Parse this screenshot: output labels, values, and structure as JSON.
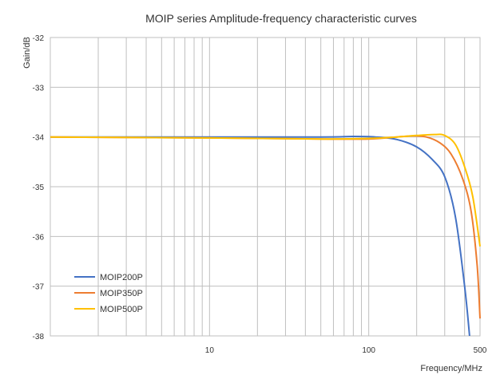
{
  "chart_data": {
    "type": "line",
    "title": "MOIP series Amplitude-frequency characteristic curves",
    "ylabel": "Gain/dB",
    "xlabel": "Frequency/MHz",
    "x_scale": "log",
    "xlim": [
      1,
      500
    ],
    "ylim": [
      -38,
      -32
    ],
    "grid": true,
    "legend_position": "bottom-left",
    "x_ticks": [
      {
        "value": 10,
        "label": "10"
      },
      {
        "value": 100,
        "label": "100"
      },
      {
        "value": 500,
        "label": "500"
      }
    ],
    "y_ticks": [
      {
        "value": -32,
        "label": "-32"
      },
      {
        "value": -33,
        "label": "-33"
      },
      {
        "value": -34,
        "label": "-34"
      },
      {
        "value": -35,
        "label": "-35"
      },
      {
        "value": -36,
        "label": "-36"
      },
      {
        "value": -37,
        "label": "-37"
      },
      {
        "value": -38,
        "label": "-38"
      }
    ],
    "series": [
      {
        "name": "MOIP200P",
        "color": "#4472c4",
        "points": [
          [
            1,
            -34.0
          ],
          [
            10,
            -34.0
          ],
          [
            50,
            -34.0
          ],
          [
            80,
            -33.99
          ],
          [
            110,
            -34.0
          ],
          [
            150,
            -34.05
          ],
          [
            200,
            -34.2
          ],
          [
            250,
            -34.45
          ],
          [
            300,
            -34.8
          ],
          [
            350,
            -35.6
          ],
          [
            400,
            -37.0
          ],
          [
            430,
            -38.0
          ]
        ]
      },
      {
        "name": "MOIP350P",
        "color": "#ed7d31",
        "points": [
          [
            1,
            -34.0
          ],
          [
            10,
            -34.02
          ],
          [
            50,
            -34.04
          ],
          [
            100,
            -34.04
          ],
          [
            150,
            -34.0
          ],
          [
            190,
            -33.98
          ],
          [
            230,
            -34.0
          ],
          [
            280,
            -34.12
          ],
          [
            330,
            -34.35
          ],
          [
            390,
            -34.85
          ],
          [
            440,
            -35.5
          ],
          [
            480,
            -36.6
          ],
          [
            500,
            -37.65
          ]
        ]
      },
      {
        "name": "MOIP500P",
        "color": "#ffc000",
        "points": [
          [
            1,
            -34.0
          ],
          [
            10,
            -34.02
          ],
          [
            50,
            -34.04
          ],
          [
            100,
            -34.03
          ],
          [
            150,
            -34.0
          ],
          [
            200,
            -33.97
          ],
          [
            260,
            -33.95
          ],
          [
            300,
            -33.97
          ],
          [
            350,
            -34.15
          ],
          [
            400,
            -34.6
          ],
          [
            450,
            -35.2
          ],
          [
            500,
            -36.2
          ]
        ]
      }
    ]
  }
}
